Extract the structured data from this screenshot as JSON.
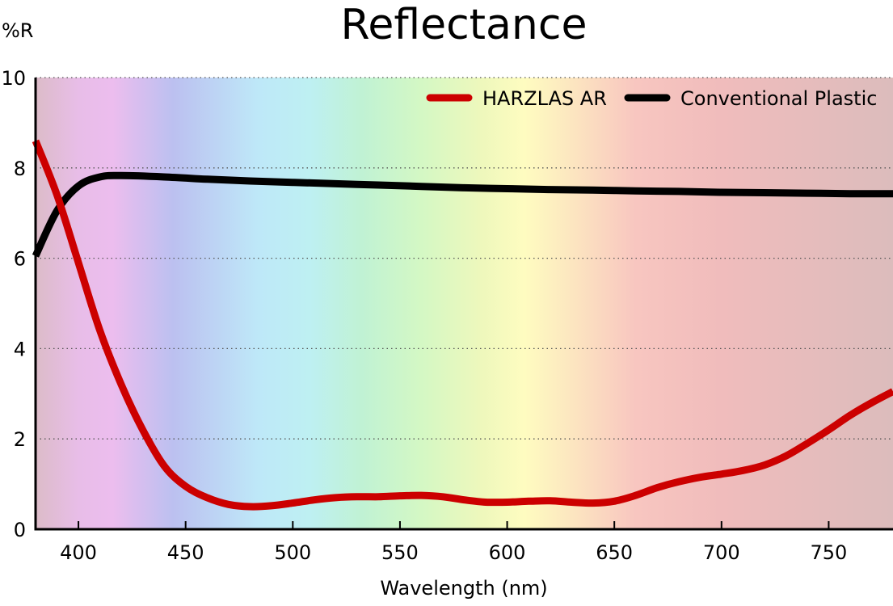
{
  "chart_data": {
    "type": "line",
    "title": "Reflectance",
    "xlabel": "Wavelength (nm)",
    "ylabel": "%R",
    "xlim": [
      380,
      780
    ],
    "ylim": [
      0,
      10
    ],
    "x_ticks": [
      "400",
      "450",
      "500",
      "550",
      "600",
      "650",
      "700",
      "750"
    ],
    "x_tick_values": [
      400,
      450,
      500,
      550,
      600,
      650,
      700,
      750
    ],
    "y_ticks": [
      "0",
      "2",
      "4",
      "6",
      "8",
      "10"
    ],
    "y_tick_values": [
      0,
      2,
      4,
      6,
      8,
      10
    ],
    "grid": "horizontal dotted",
    "legend_position": "top-right",
    "background": "visible spectrum gradient",
    "series": [
      {
        "name": "HARZLAS AR",
        "color": "#cc0000",
        "x": [
          380,
          390,
          400,
          410,
          420,
          430,
          440,
          450,
          460,
          470,
          480,
          490,
          500,
          510,
          520,
          530,
          540,
          550,
          560,
          570,
          580,
          590,
          600,
          610,
          620,
          630,
          640,
          650,
          660,
          670,
          680,
          690,
          700,
          710,
          720,
          730,
          740,
          750,
          760,
          770,
          780
        ],
        "y": [
          8.6,
          7.4,
          5.9,
          4.4,
          3.2,
          2.2,
          1.4,
          0.95,
          0.7,
          0.55,
          0.5,
          0.52,
          0.58,
          0.65,
          0.7,
          0.72,
          0.72,
          0.74,
          0.75,
          0.72,
          0.65,
          0.6,
          0.6,
          0.62,
          0.63,
          0.6,
          0.58,
          0.62,
          0.75,
          0.92,
          1.05,
          1.15,
          1.22,
          1.3,
          1.42,
          1.62,
          1.9,
          2.2,
          2.52,
          2.8,
          3.05
        ]
      },
      {
        "name": "Conventional Plastic",
        "color": "#000000",
        "x": [
          380,
          390,
          400,
          410,
          420,
          440,
          460,
          480,
          500,
          520,
          540,
          560,
          580,
          600,
          620,
          640,
          660,
          680,
          700,
          720,
          740,
          760,
          780
        ],
        "y": [
          6.05,
          7.05,
          7.6,
          7.8,
          7.83,
          7.8,
          7.75,
          7.71,
          7.68,
          7.65,
          7.62,
          7.59,
          7.56,
          7.54,
          7.52,
          7.51,
          7.49,
          7.48,
          7.46,
          7.45,
          7.44,
          7.43,
          7.43
        ]
      }
    ]
  }
}
